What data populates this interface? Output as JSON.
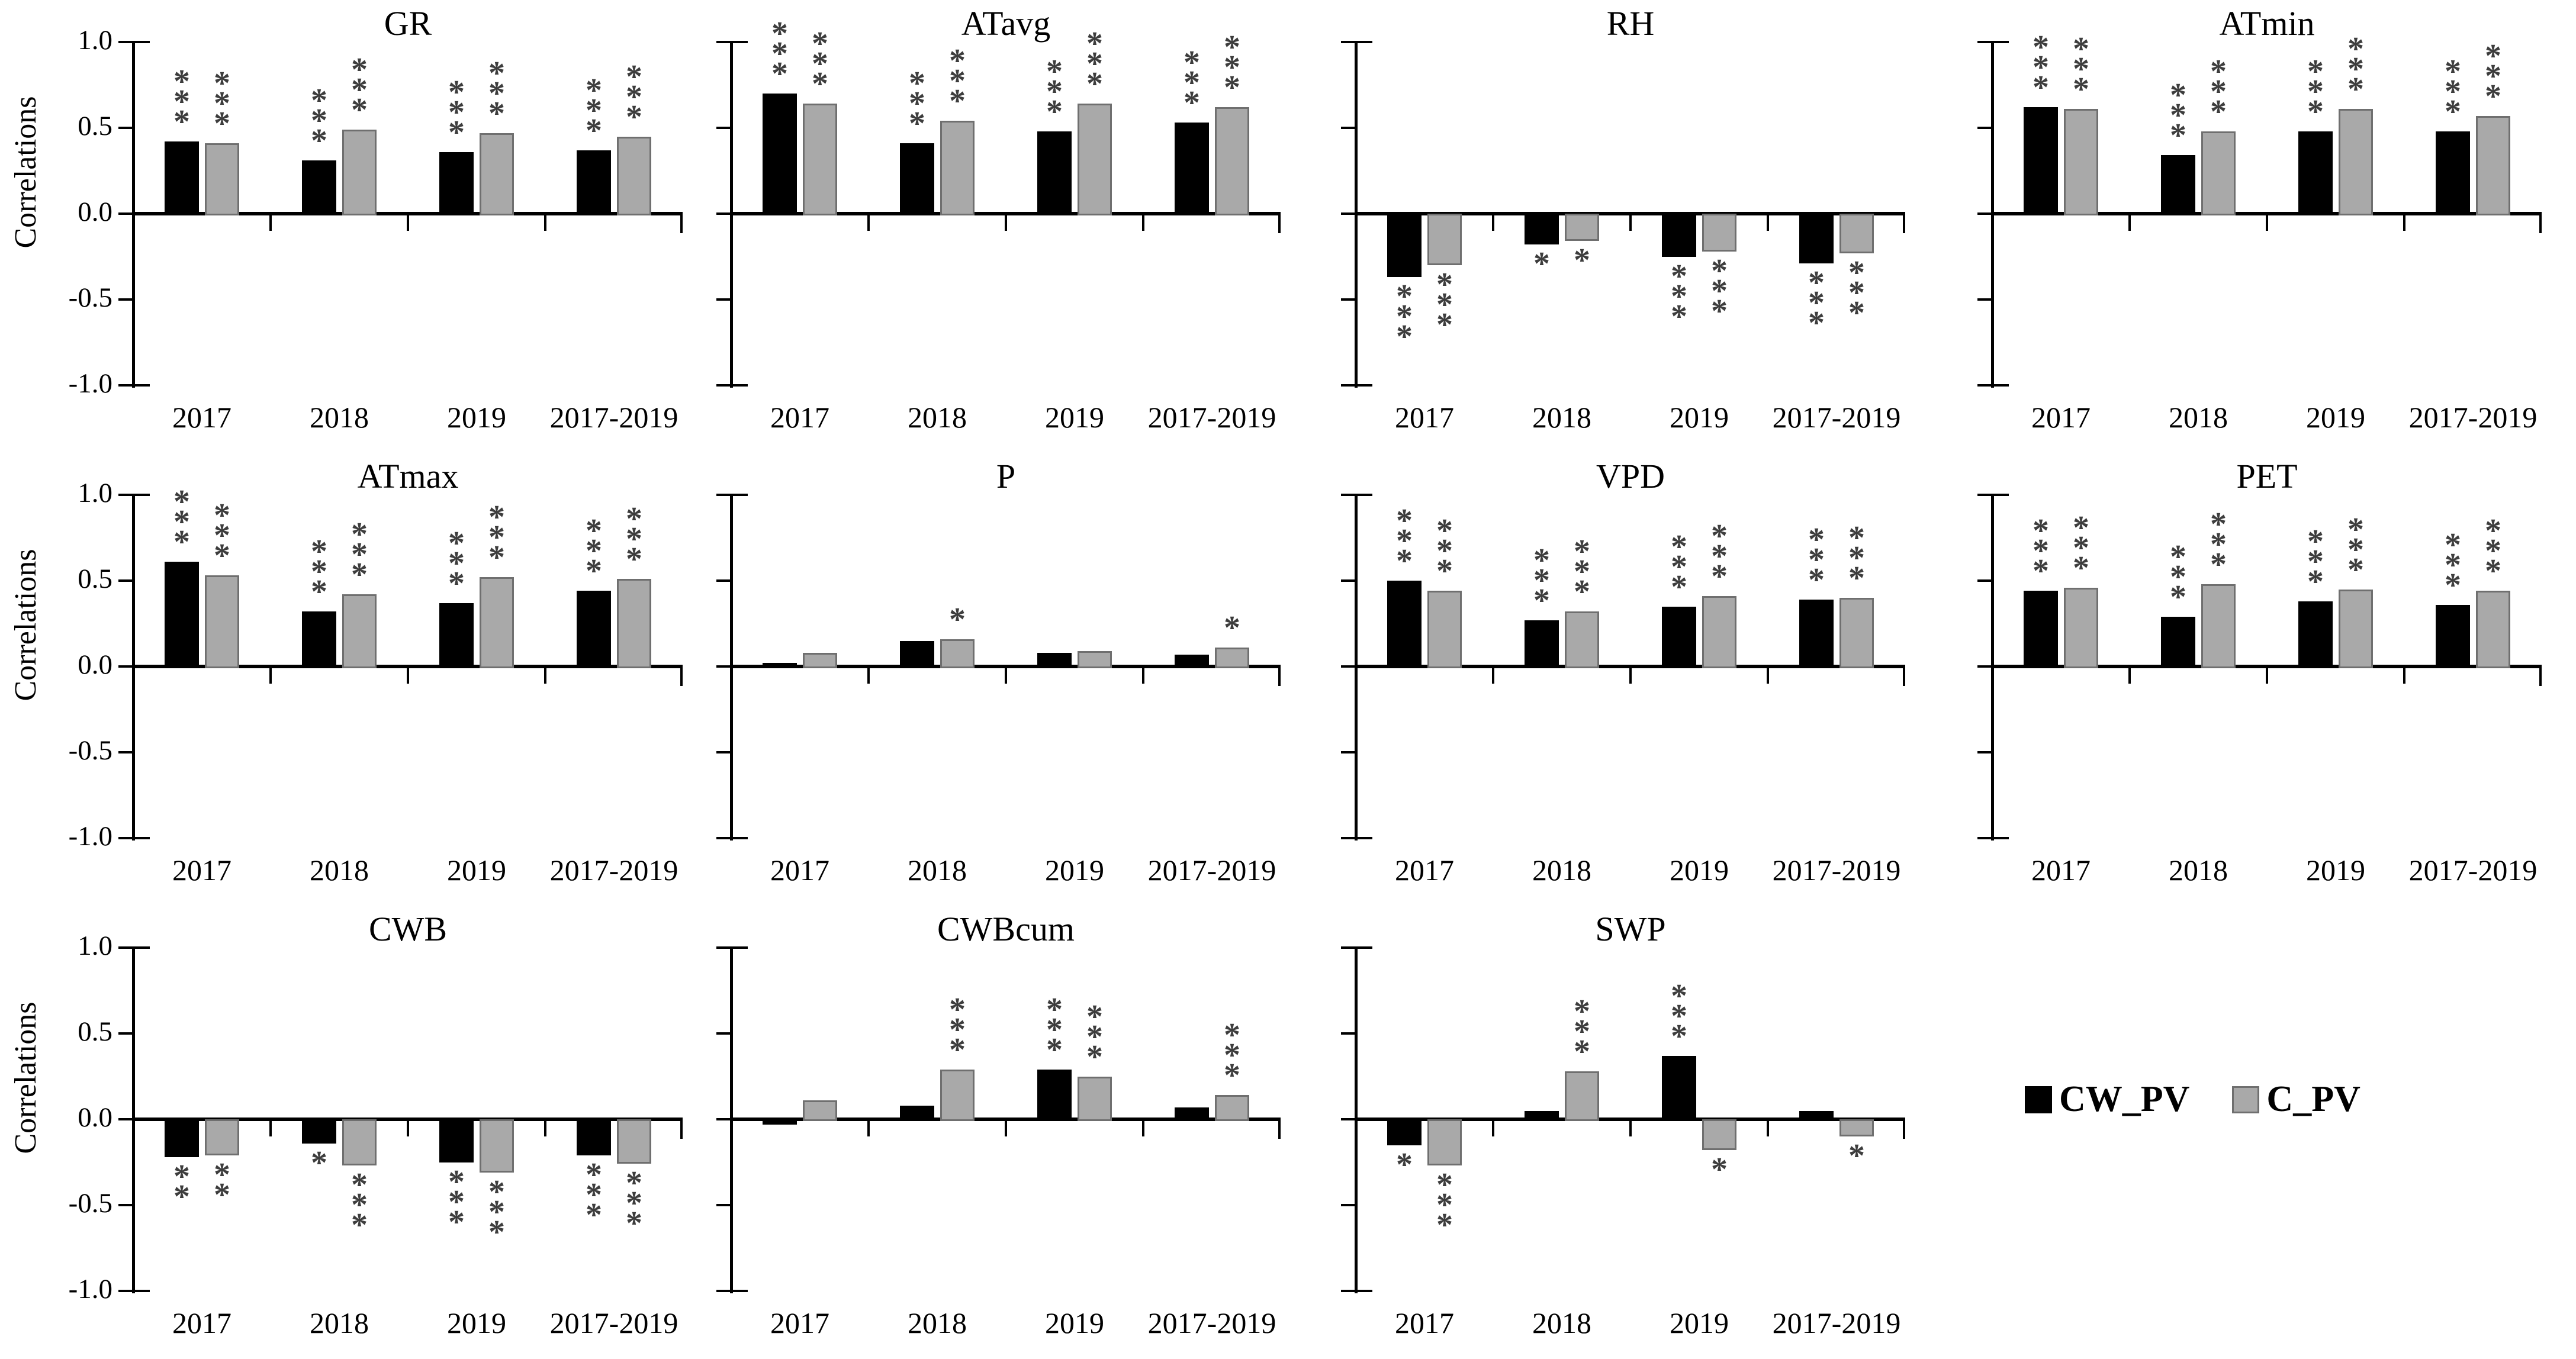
{
  "figure": {
    "background": "#ffffff",
    "axis_color": "#000000",
    "star_color": "#3d3d3d"
  },
  "chart_data": {
    "type": "bar",
    "categories": [
      "2017",
      "2018",
      "2019",
      "2017-2019"
    ],
    "ylabel": "Correlations",
    "ylim": [
      -1.0,
      1.0
    ],
    "ytick_labels": [
      "1.0",
      "0.5",
      "0.0",
      "-0.5",
      "-1.0"
    ],
    "grid": "off",
    "legend_position": "bottom-right-cell",
    "series_names": [
      "CW_PV",
      "C_PV"
    ],
    "colors": {
      "CW_PV": "#000000",
      "C_PV": "#a9a9a9",
      "C_PV_border": "#6f6f6f"
    },
    "significance_note": "stars above/below bars indicate significance (*, **, ***)",
    "panels": [
      {
        "title": "GR",
        "row": 0,
        "col": 0,
        "show_y_labels": true,
        "series": [
          {
            "name": "CW_PV",
            "values": [
              0.42,
              0.31,
              0.36,
              0.37
            ],
            "sig": [
              "***",
              "***",
              "***",
              "***"
            ]
          },
          {
            "name": "C_PV",
            "values": [
              0.41,
              0.49,
              0.47,
              0.45
            ],
            "sig": [
              "***",
              "***",
              "***",
              "***"
            ]
          }
        ]
      },
      {
        "title": "ATavg",
        "row": 0,
        "col": 1,
        "show_y_labels": false,
        "series": [
          {
            "name": "CW_PV",
            "values": [
              0.7,
              0.41,
              0.48,
              0.53
            ],
            "sig": [
              "***",
              "***",
              "***",
              "***"
            ]
          },
          {
            "name": "C_PV",
            "values": [
              0.64,
              0.54,
              0.64,
              0.62
            ],
            "sig": [
              "***",
              "***",
              "***",
              "***"
            ]
          }
        ]
      },
      {
        "title": "RH",
        "row": 0,
        "col": 2,
        "show_y_labels": false,
        "series": [
          {
            "name": "CW_PV",
            "values": [
              -0.37,
              -0.18,
              -0.25,
              -0.29
            ],
            "sig": [
              "***",
              "*",
              "***",
              "***"
            ]
          },
          {
            "name": "C_PV",
            "values": [
              -0.3,
              -0.16,
              -0.22,
              -0.23
            ],
            "sig": [
              "***",
              "*",
              "***",
              "***"
            ]
          }
        ]
      },
      {
        "title": "ATmin",
        "row": 0,
        "col": 3,
        "show_y_labels": false,
        "series": [
          {
            "name": "CW_PV",
            "values": [
              0.62,
              0.34,
              0.48,
              0.48
            ],
            "sig": [
              "***",
              "***",
              "***",
              "***"
            ]
          },
          {
            "name": "C_PV",
            "values": [
              0.61,
              0.48,
              0.61,
              0.57
            ],
            "sig": [
              "***",
              "***",
              "***",
              "***"
            ]
          }
        ]
      },
      {
        "title": "ATmax",
        "row": 1,
        "col": 0,
        "show_y_labels": true,
        "series": [
          {
            "name": "CW_PV",
            "values": [
              0.61,
              0.32,
              0.37,
              0.44
            ],
            "sig": [
              "***",
              "***",
              "***",
              "***"
            ]
          },
          {
            "name": "C_PV",
            "values": [
              0.53,
              0.42,
              0.52,
              0.51
            ],
            "sig": [
              "***",
              "***",
              "***",
              "***"
            ]
          }
        ]
      },
      {
        "title": "P",
        "row": 1,
        "col": 1,
        "show_y_labels": false,
        "series": [
          {
            "name": "CW_PV",
            "values": [
              0.02,
              0.15,
              0.08,
              0.07
            ],
            "sig": [
              null,
              null,
              null,
              null
            ]
          },
          {
            "name": "C_PV",
            "values": [
              0.08,
              0.16,
              0.09,
              0.11
            ],
            "sig": [
              null,
              "*",
              null,
              "*"
            ]
          }
        ]
      },
      {
        "title": "VPD",
        "row": 1,
        "col": 2,
        "show_y_labels": false,
        "series": [
          {
            "name": "CW_PV",
            "values": [
              0.5,
              0.27,
              0.35,
              0.39
            ],
            "sig": [
              "***",
              "***",
              "***",
              "***"
            ]
          },
          {
            "name": "C_PV",
            "values": [
              0.44,
              0.32,
              0.41,
              0.4
            ],
            "sig": [
              "***",
              "***",
              "***",
              "***"
            ]
          }
        ]
      },
      {
        "title": "PET",
        "row": 1,
        "col": 3,
        "show_y_labels": false,
        "series": [
          {
            "name": "CW_PV",
            "values": [
              0.44,
              0.29,
              0.38,
              0.36
            ],
            "sig": [
              "***",
              "***",
              "***",
              "***"
            ]
          },
          {
            "name": "C_PV",
            "values": [
              0.46,
              0.48,
              0.45,
              0.44
            ],
            "sig": [
              "***",
              "***",
              "***",
              "***"
            ]
          }
        ]
      },
      {
        "title": "CWB",
        "row": 2,
        "col": 0,
        "show_y_labels": true,
        "series": [
          {
            "name": "CW_PV",
            "values": [
              -0.22,
              -0.14,
              -0.25,
              -0.21
            ],
            "sig": [
              "**",
              "*",
              "***",
              "***"
            ]
          },
          {
            "name": "C_PV",
            "values": [
              -0.21,
              -0.27,
              -0.31,
              -0.26
            ],
            "sig": [
              "**",
              "***",
              "***",
              "***"
            ]
          }
        ]
      },
      {
        "title": "CWBcum",
        "row": 2,
        "col": 1,
        "show_y_labels": false,
        "series": [
          {
            "name": "CW_PV",
            "values": [
              -0.03,
              0.08,
              0.29,
              0.07
            ],
            "sig": [
              null,
              null,
              "***",
              null
            ]
          },
          {
            "name": "C_PV",
            "values": [
              0.11,
              0.29,
              0.25,
              0.14
            ],
            "sig": [
              null,
              "***",
              "***",
              "***"
            ]
          }
        ]
      },
      {
        "title": "SWP",
        "row": 2,
        "col": 2,
        "show_y_labels": false,
        "series": [
          {
            "name": "CW_PV",
            "values": [
              -0.15,
              0.05,
              0.37,
              0.05
            ],
            "sig": [
              "*",
              null,
              "***",
              null
            ]
          },
          {
            "name": "C_PV",
            "values": [
              -0.27,
              0.28,
              -0.18,
              -0.1
            ],
            "sig": [
              "***",
              "***",
              "*",
              "*"
            ]
          }
        ]
      }
    ],
    "legend": {
      "items": [
        {
          "label": "CW_PV",
          "color": "#000000"
        },
        {
          "label": "C_PV",
          "color": "#a9a9a9"
        }
      ]
    }
  }
}
